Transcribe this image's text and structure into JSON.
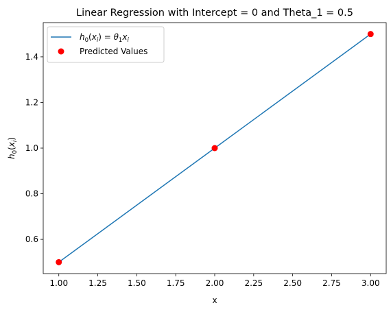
{
  "chart_data": {
    "type": "line",
    "title": "Linear Regression with Intercept = 0 and Theta_1 = 0.5",
    "xlabel": "x",
    "ylabel": "h0(xi)",
    "xlim": [
      0.9,
      3.1
    ],
    "ylim": [
      0.45,
      1.55
    ],
    "x_ticks": [
      "1.00",
      "1.25",
      "1.50",
      "1.75",
      "2.00",
      "2.25",
      "2.50",
      "2.75",
      "3.00"
    ],
    "y_ticks": [
      "0.6",
      "0.8",
      "1.0",
      "1.2",
      "1.4"
    ],
    "series": [
      {
        "name": "h0(xi) = θ1xi",
        "kind": "line",
        "color": "#1f77b4",
        "x": [
          1,
          2,
          3
        ],
        "y": [
          0.5,
          1.0,
          1.5
        ]
      },
      {
        "name": "Predicted Values",
        "kind": "scatter",
        "color": "#ff0000",
        "x": [
          1,
          2,
          3
        ],
        "y": [
          0.5,
          1.0,
          1.5
        ]
      }
    ],
    "legend_position": "top-left",
    "grid": false
  }
}
